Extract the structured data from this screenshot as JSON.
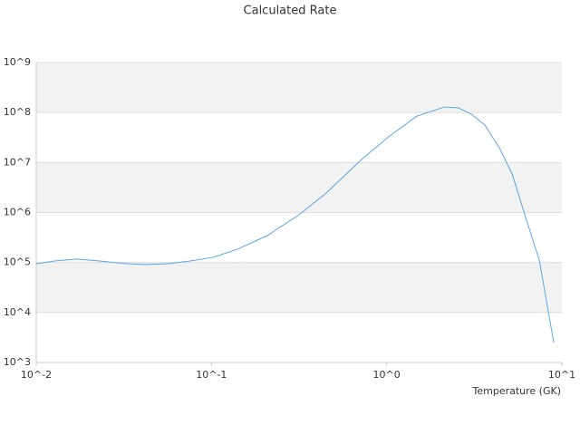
{
  "chart_data": {
    "type": "line",
    "title": "Calculated Rate",
    "x_label": "Temperature (GK)",
    "log_x": true,
    "log_y": true,
    "grid": true,
    "band_color": "#f2f2f2",
    "xlim": [
      0.01,
      10
    ],
    "ylim": [
      1000,
      1000000000
    ],
    "xticks": [
      {
        "value": 0.01,
        "label": "10^-2"
      },
      {
        "value": 0.1,
        "label": "10^-1"
      },
      {
        "value": 1,
        "label": "10^0"
      },
      {
        "value": 10,
        "label": "10^1"
      }
    ],
    "yticks": [
      {
        "value": 1000,
        "label": "10^3"
      },
      {
        "value": 10000,
        "label": "10^4"
      },
      {
        "value": 100000,
        "label": "10^5"
      },
      {
        "value": 1000000,
        "label": "10^6"
      },
      {
        "value": 10000000,
        "label": "10^7"
      },
      {
        "value": 100000000,
        "label": "10^8"
      },
      {
        "value": 1000000000,
        "label": "10^9"
      }
    ],
    "x": [
      0.01,
      0.0127,
      0.0171,
      0.023,
      0.0329,
      0.0418,
      0.0562,
      0.0757,
      0.102,
      0.141,
      0.208,
      0.316,
      0.452,
      0.728,
      1.04,
      1.49,
      2.13,
      2.55,
      3.04,
      3.64,
      4.45,
      5.2,
      6.22,
      7.43,
      8.99
    ],
    "series": [
      {
        "color": "#5aa5e6",
        "values": [
          94600,
          107000,
          117000,
          107000,
          94600,
          91000,
          94600,
          107000,
          127000,
          185000,
          345000,
          900000,
          2450000,
          12000000,
          34000000,
          85000000,
          129000000,
          125000000,
          93000000,
          56000000,
          18200000,
          5900000,
          790000,
          112000,
          2500
        ]
      }
    ]
  }
}
